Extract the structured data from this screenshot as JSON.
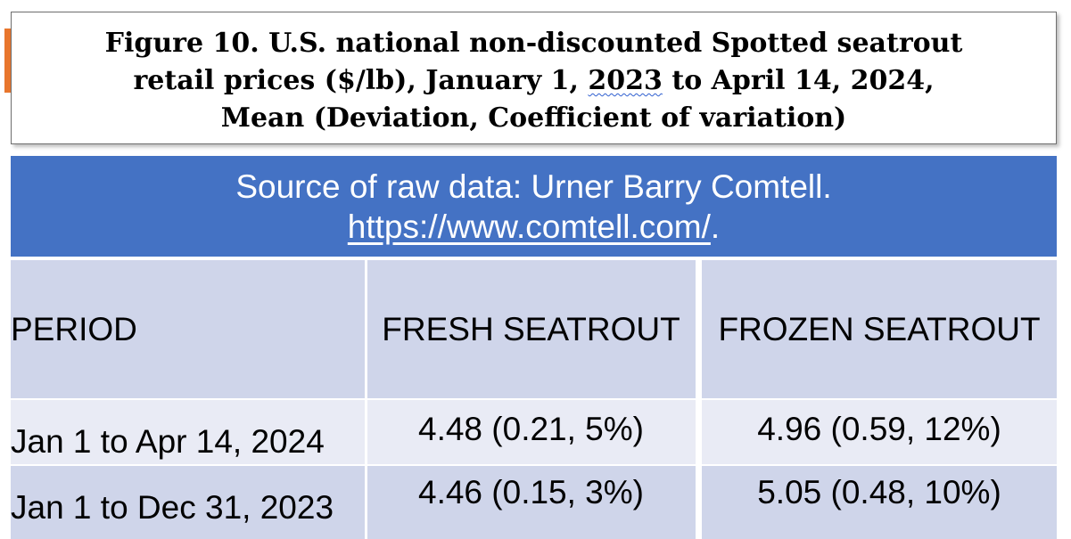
{
  "title": {
    "line1": "Figure 10. U.S. national non-discounted Spotted seatrout",
    "line2_before": "retail prices ($/lb), January 1, ",
    "line2_year": "2023",
    "line2_after": " to April 14, 2024,",
    "line3": "Mean (Deviation, Coefficient of variation)"
  },
  "source": {
    "line1": "Source of raw data: Urner Barry Comtell.",
    "url": "https://www.comtell.com/",
    "url_suffix": "."
  },
  "table": {
    "headers": [
      "PERIOD",
      "FRESH SEATROUT",
      "FROZEN SEATROUT"
    ],
    "rows": [
      [
        "Jan 1 to Apr 14, 2024",
        "4.48 (0.21, 5%)",
        "4.96 (0.59, 12%)"
      ],
      [
        "Jan 1 to Dec 31, 2023",
        "4.46 (0.15, 3%)",
        "5.05 (0.48, 10%)"
      ]
    ]
  },
  "colors": {
    "accent": "#E8762D",
    "banner": "#4472C4",
    "header_fill": "#CFD5EA",
    "row_fill_light": "#E9EBF5"
  }
}
